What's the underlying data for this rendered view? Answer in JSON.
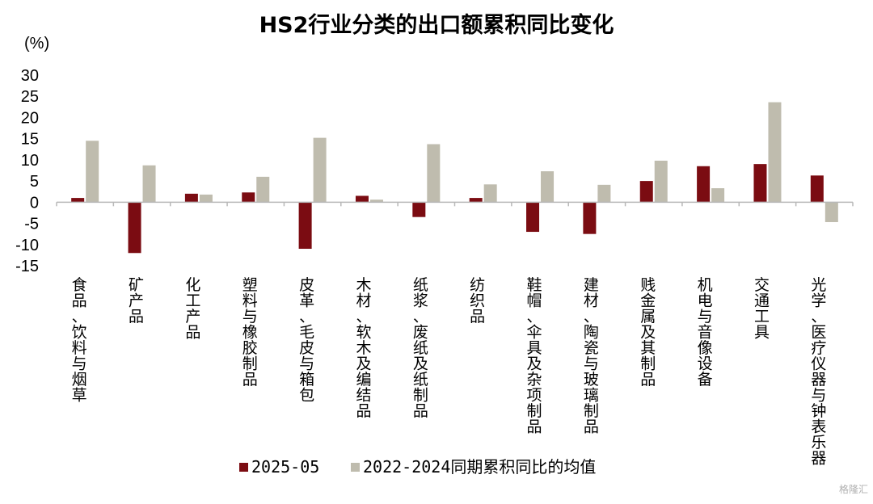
{
  "chart_data": {
    "type": "bar",
    "title": "HS2行业分类的出口额累积同比变化",
    "ylabel": "(%)",
    "ylim": [
      -15,
      30
    ],
    "yticks": [
      30,
      25,
      20,
      15,
      10,
      5,
      0,
      -5,
      -10,
      -15
    ],
    "grid": false,
    "legend_position": "bottom",
    "categories": [
      "食品、饮料与烟草",
      "矿产品",
      "化工产品",
      "塑料与橡胶制品",
      "皮革、毛皮与箱包",
      "木材、软木及编结品",
      "纸浆、废纸及纸制品",
      "纺织品",
      "鞋帽、伞具及杂项制品",
      "建材、陶瓷与玻璃制品",
      "贱金属及其制品",
      "机电与音像设备",
      "交通工具",
      "光学、医疗仪器与钟表乐器"
    ],
    "series": [
      {
        "name": "2025-05",
        "color": "#7b0c12",
        "values": [
          1,
          -12,
          2,
          2.3,
          -11,
          1.5,
          -3.5,
          1,
          -7,
          -7.5,
          5,
          8.5,
          9,
          6.3
        ]
      },
      {
        "name": "2022-2024同期累积同比的均值",
        "color": "#bfbcae",
        "values": [
          14.5,
          8.7,
          1.8,
          6,
          15.2,
          0.6,
          13.7,
          4.2,
          7.3,
          4.1,
          9.8,
          3.3,
          23.6,
          -4.7
        ]
      }
    ]
  },
  "watermark": "格隆汇"
}
